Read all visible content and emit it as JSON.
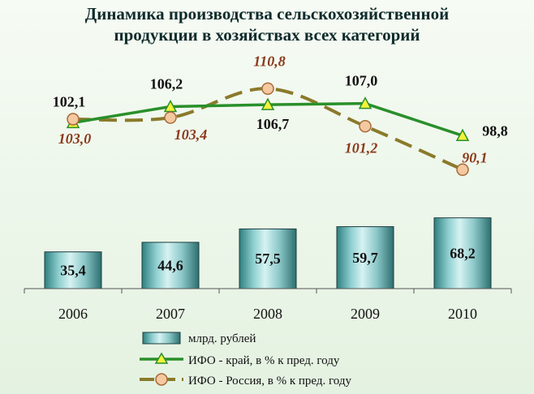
{
  "chart_data": {
    "type": "bar",
    "title_lines": [
      "Динамика производства сельскохозяйственной",
      "продукции в хозяйствах всех категорий"
    ],
    "categories": [
      "2006",
      "2007",
      "2008",
      "2009",
      "2010"
    ],
    "series": [
      {
        "name": "млрд. рублей",
        "kind": "bar",
        "values": [
          35.4,
          44.6,
          57.5,
          59.7,
          68.2
        ],
        "labels": [
          "35,4",
          "44,6",
          "57,5",
          "59,7",
          "68,2"
        ]
      },
      {
        "name": "ИФО - край, в % к пред. году",
        "kind": "line",
        "marker": "triangle",
        "values": [
          102.1,
          106.2,
          106.7,
          107.0,
          98.8
        ],
        "labels": [
          "102,1",
          "106,2",
          "106,7",
          "107,0",
          "98,8"
        ],
        "color": "#2a8f2a",
        "marker_color": "#f2f23a"
      },
      {
        "name": "ИФО - Россия, в % к пред. году",
        "kind": "line",
        "marker": "circle",
        "dashed": true,
        "values": [
          103.0,
          103.4,
          110.8,
          101.2,
          90.1
        ],
        "labels": [
          "103,0",
          "103,4",
          "110,8",
          "101,2",
          "90,1"
        ],
        "color": "#8a7a2a",
        "marker_color": "#f4c9a0",
        "label_color": "#8b3a1a"
      }
    ],
    "legend_position": "bottom",
    "grid": false,
    "bar_color": "#5aa6a8"
  }
}
